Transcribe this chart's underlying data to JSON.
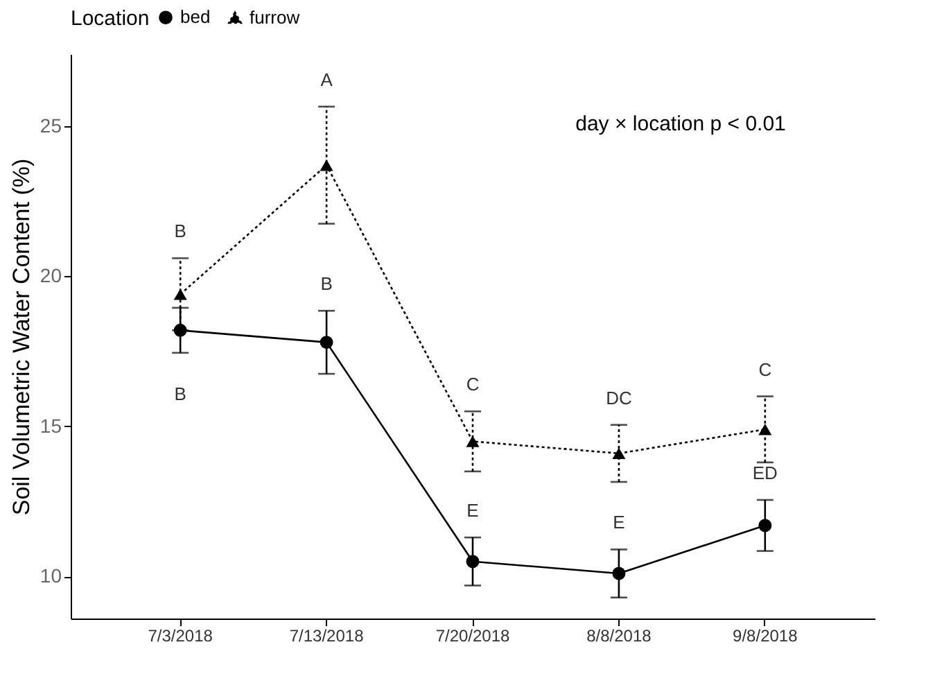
{
  "chart_data": {
    "type": "line",
    "ylabel": "Soil Volumetric Water Content (%)",
    "legend_title": "Location",
    "legend": "top",
    "categories": [
      "7/3/2018",
      "7/13/2018",
      "7/20/2018",
      "8/8/2018",
      "9/8/2018"
    ],
    "ylim": [
      8.6,
      27.4
    ],
    "yticks": [
      10,
      15,
      20,
      25
    ],
    "grid": false,
    "series": [
      {
        "name": "bed",
        "color": "#000000",
        "marker": "circle",
        "line_style": "solid",
        "values": [
          18.2,
          17.8,
          10.5,
          10.1,
          11.7
        ],
        "errors": [
          0.75,
          1.05,
          0.8,
          0.8,
          0.85
        ]
      },
      {
        "name": "furrow",
        "color": "#000000",
        "marker": "triangle",
        "line_style": "dotted",
        "values": [
          19.4,
          23.7,
          14.5,
          14.1,
          14.9
        ],
        "errors": [
          1.2,
          1.95,
          1.0,
          0.95,
          1.1
        ]
      }
    ],
    "annotations": [
      "B",
      "B",
      "E",
      "E",
      "ED",
      "B",
      "A",
      "C",
      "DC",
      "C",
      "day × location p < 0.01"
    ]
  }
}
